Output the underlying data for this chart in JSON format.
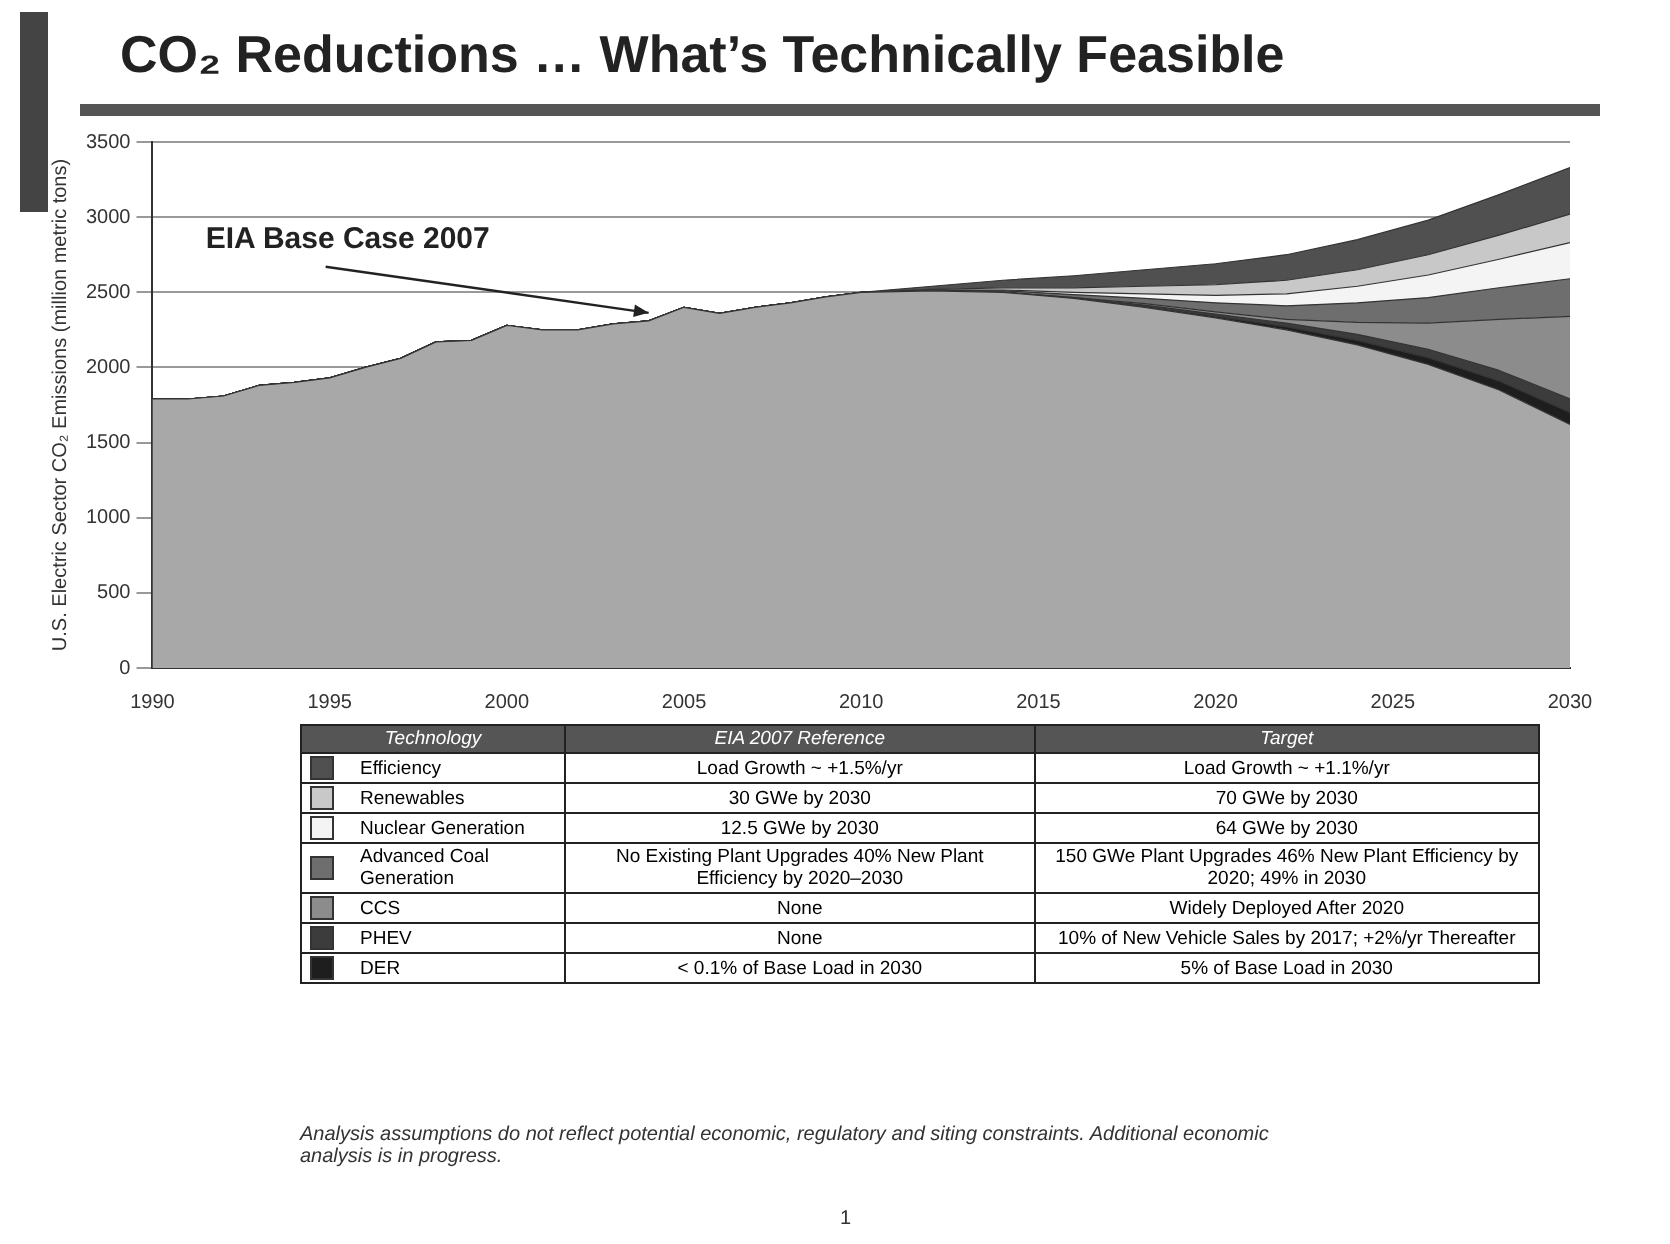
{
  "chart_data": {
    "type": "area",
    "stacked": true,
    "title": "CO₂ Reductions … What’s Technically Feasible",
    "ylabel": "U.S. Electric Sector CO₂ Emissions (million metric tons)",
    "legend_title": "Technology",
    "x": [
      1990,
      1991,
      1992,
      1993,
      1994,
      1995,
      1996,
      1997,
      1998,
      1999,
      2000,
      2001,
      2002,
      2003,
      2004,
      2005,
      2006,
      2007,
      2008,
      2009,
      2010,
      2012,
      2014,
      2016,
      2018,
      2020,
      2022,
      2024,
      2026,
      2028,
      2030
    ],
    "xlim": [
      1990,
      2030
    ],
    "xticks": [
      1990,
      1995,
      2000,
      2005,
      2010,
      2015,
      2020,
      2025,
      2030
    ],
    "ylim": [
      0,
      3500
    ],
    "yticks": [
      0,
      500,
      1000,
      1500,
      2000,
      2500,
      3000,
      3500
    ],
    "grid": "y",
    "legend": "bottom",
    "series": [
      {
        "color": "#a8a8a8",
        "values": [
          1790,
          1790,
          1810,
          1880,
          1900,
          1930,
          2000,
          2060,
          2170,
          2180,
          2280,
          2250,
          2250,
          2290,
          2310,
          2400,
          2360,
          2400,
          2430,
          2470,
          2500,
          2510,
          2500,
          2460,
          2400,
          2330,
          2250,
          2150,
          2020,
          1850,
          1620
        ]
      },
      {
        "name": "DER",
        "color": "#1e1e1e",
        "values": [
          0,
          0,
          0,
          0,
          0,
          0,
          0,
          0,
          0,
          0,
          0,
          0,
          0,
          0,
          0,
          0,
          0,
          0,
          0,
          0,
          0,
          0,
          0,
          0,
          5,
          10,
          20,
          30,
          45,
          60,
          80
        ]
      },
      {
        "name": "PHEV",
        "color": "#3c3c3c",
        "values": [
          0,
          0,
          0,
          0,
          0,
          0,
          0,
          0,
          0,
          0,
          0,
          0,
          0,
          0,
          0,
          0,
          0,
          0,
          0,
          0,
          0,
          0,
          0,
          5,
          10,
          15,
          25,
          40,
          55,
          70,
          90
        ]
      },
      {
        "name": "CCS",
        "color": "#8c8c8c",
        "values": [
          0,
          0,
          0,
          0,
          0,
          0,
          0,
          0,
          0,
          0,
          0,
          0,
          0,
          0,
          0,
          0,
          0,
          0,
          0,
          0,
          0,
          0,
          0,
          0,
          10,
          15,
          25,
          80,
          175,
          340,
          550
        ]
      },
      {
        "name": "Advanced Coal Generation",
        "color": "#6e6e6e",
        "values": [
          0,
          0,
          0,
          0,
          0,
          0,
          0,
          0,
          0,
          0,
          0,
          0,
          0,
          0,
          0,
          0,
          0,
          0,
          0,
          0,
          0,
          5,
          10,
          20,
          35,
          60,
          90,
          130,
          170,
          210,
          250
        ]
      },
      {
        "name": "Nuclear Generation",
        "color": "#f4f4f4",
        "values": [
          0,
          0,
          0,
          0,
          0,
          0,
          0,
          0,
          0,
          0,
          0,
          0,
          0,
          0,
          0,
          0,
          0,
          0,
          0,
          0,
          0,
          0,
          5,
          15,
          30,
          50,
          80,
          110,
          150,
          190,
          240
        ]
      },
      {
        "name": "Renewables",
        "color": "#c8c8c8",
        "values": [
          0,
          0,
          0,
          0,
          0,
          0,
          0,
          0,
          0,
          0,
          0,
          0,
          0,
          0,
          0,
          0,
          0,
          0,
          0,
          0,
          0,
          5,
          15,
          30,
          50,
          70,
          90,
          110,
          135,
          160,
          190
        ]
      },
      {
        "name": "Efficiency",
        "color": "#505050",
        "values": [
          0,
          0,
          0,
          0,
          0,
          0,
          0,
          0,
          0,
          0,
          0,
          0,
          0,
          0,
          0,
          0,
          0,
          0,
          0,
          0,
          0,
          20,
          50,
          80,
          110,
          140,
          170,
          200,
          230,
          270,
          310
        ]
      }
    ],
    "annotations": [
      {
        "text": "EIA Base Case 2007",
        "x": 2004,
        "y": 2310
      },
      "EIA 2007 Reference",
      "Target",
      "Load Growth ~ +1.5%/yr",
      "Load Growth ~ +1.1%/yr",
      "30 GWe by 2030",
      "70 GWe by 2030",
      "12.5 GWe by 2030",
      "64 GWe by 2030",
      "No Existing Plant Upgrades 40% New Plant Efficiency by 2020–2030",
      "150 GWe Plant Upgrades 46% New Plant Efficiency by 2020; 49% in 2030",
      "None",
      "Widely Deployed After 2020",
      "None",
      "10% of New Vehicle Sales by 2017; +2%/yr Thereafter",
      "< 0.1% of Base Load in 2030",
      "5% of Base Load in 2030",
      "Analysis assumptions do not reflect potential economic, regulatory and siting constraints. Additional economic analysis is in progress.",
      "1"
    ]
  }
}
